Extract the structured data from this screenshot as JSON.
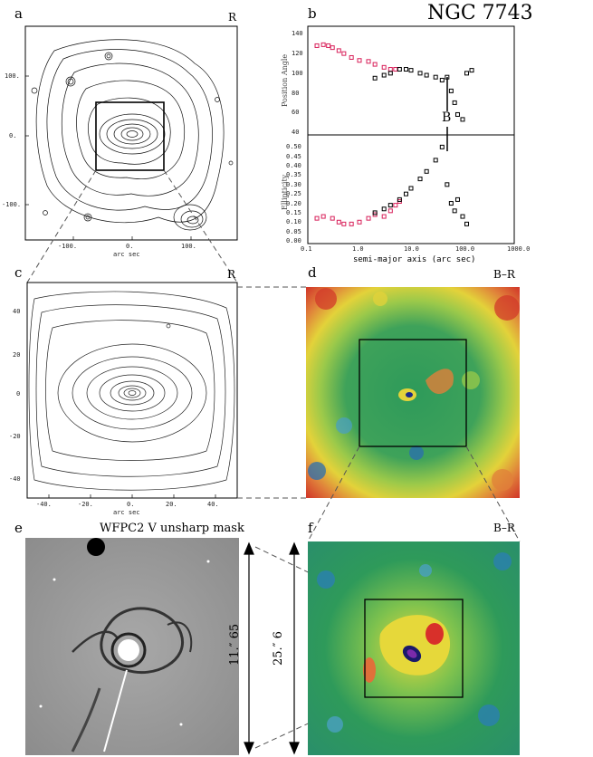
{
  "figure_title": "NGC 7743",
  "panels": {
    "a": {
      "label": "a",
      "band": "R",
      "xlabel": "arc sec",
      "xticks": [
        "-100.",
        "0.",
        "100."
      ],
      "yticks": [
        "100.",
        "0.",
        "-100."
      ]
    },
    "b": {
      "label": "b",
      "xlabel": "semi-major axis (arc sec)",
      "pa_ylabel": "Position Angle",
      "ell_ylabel": "Ellipticity",
      "pa_yticks": [
        "140",
        "120",
        "100",
        "80",
        "60",
        "40"
      ],
      "ell_yticks": [
        "0.50",
        "0.45",
        "0.40",
        "0.35",
        "0.30",
        "0.25",
        "0.20",
        "0.15",
        "0.10",
        "0.05",
        "0.00"
      ],
      "xticks": [
        "0.1",
        "1.0",
        "10.0",
        "100.0",
        "1000.0"
      ],
      "marker": "B"
    },
    "c": {
      "label": "c",
      "band": "R",
      "xlabel": "arc sec",
      "xticks": [
        "-40.",
        "-20.",
        "0.",
        "20.",
        "40."
      ],
      "yticks": [
        "40",
        "20",
        "0",
        "-20",
        "-40"
      ]
    },
    "d": {
      "label": "d",
      "band": "B–R"
    },
    "e": {
      "label": "e",
      "title": "WFPC2 V unsharp mask",
      "scale": "11.″ 65"
    },
    "f": {
      "label": "f",
      "band": "B–R",
      "scale": "25.″ 6"
    }
  },
  "chart_data": [
    {
      "type": "scatter",
      "title": "",
      "xlabel": "semi-major axis (arc sec)",
      "ylabel": "Position Angle",
      "xscale": "log",
      "xlim": [
        0.1,
        1000
      ],
      "ylim": [
        40,
        145
      ],
      "series": [
        {
          "color": "#d8205a",
          "x": [
            0.15,
            0.2,
            0.25,
            0.3,
            0.4,
            0.5,
            0.7,
            1.0,
            1.5,
            2.0,
            3.0,
            4.0,
            5.0
          ],
          "y": [
            128,
            129,
            128,
            126,
            123,
            120,
            116,
            113,
            112,
            109,
            106,
            104,
            104
          ]
        },
        {
          "color": "#000000",
          "x": [
            2.0,
            3.0,
            4.0,
            6.0,
            8.0,
            10,
            15,
            20,
            30,
            40,
            50,
            60,
            70,
            80,
            100,
            120,
            150
          ],
          "y": [
            95,
            98,
            100,
            104,
            104,
            103,
            100,
            98,
            96,
            93,
            96,
            82,
            70,
            58,
            53,
            100,
            103
          ]
        }
      ]
    },
    {
      "type": "scatter",
      "title": "",
      "xlabel": "semi-major axis (arc sec)",
      "ylabel": "Ellipticity",
      "xscale": "log",
      "xlim": [
        0.1,
        1000
      ],
      "ylim": [
        0,
        0.55
      ],
      "series": [
        {
          "color": "#d8205a",
          "x": [
            0.15,
            0.2,
            0.3,
            0.4,
            0.5,
            0.7,
            1.0,
            1.5,
            2.0,
            3.0,
            4.0,
            5.0,
            6.0
          ],
          "y": [
            0.12,
            0.13,
            0.12,
            0.1,
            0.09,
            0.09,
            0.1,
            0.12,
            0.14,
            0.13,
            0.16,
            0.19,
            0.21
          ]
        },
        {
          "color": "#000000",
          "x": [
            2.0,
            3.0,
            4.0,
            6.0,
            8.0,
            10,
            15,
            20,
            30,
            40,
            50,
            60,
            70,
            80,
            100,
            120
          ],
          "y": [
            0.15,
            0.17,
            0.19,
            0.22,
            0.25,
            0.28,
            0.33,
            0.37,
            0.43,
            0.5,
            0.3,
            0.2,
            0.16,
            0.22,
            0.13,
            0.09
          ]
        }
      ]
    }
  ]
}
